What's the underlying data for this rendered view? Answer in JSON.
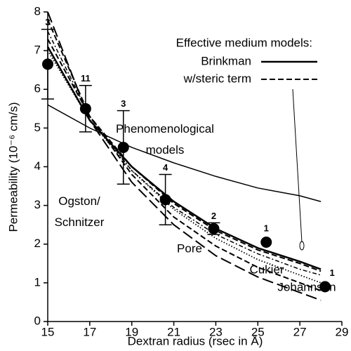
{
  "chart_data": {
    "type": "line",
    "xlabel": "Dextran radius (rsec in Å)",
    "ylabel": "Permeability (10⁻⁶ cm/s)",
    "xlim": [
      15,
      29
    ],
    "xticks": [
      15,
      17,
      19,
      21,
      23,
      25,
      27,
      29
    ],
    "ylim": [
      0,
      8
    ],
    "yticks": [
      0,
      1,
      2,
      3,
      4,
      5,
      6,
      7,
      8
    ],
    "legend_title": "Effective medium models:",
    "x": [
      15,
      17,
      19,
      21,
      23,
      25,
      27,
      28
    ],
    "series": [
      {
        "name": "Brinkman",
        "color": "#000",
        "style": "solid-thick",
        "legend": true,
        "values": [
          7.1,
          5.2,
          4.0,
          3.1,
          2.4,
          1.9,
          1.55,
          1.35
        ]
      },
      {
        "name": "w/steric term",
        "color": "#000",
        "style": "dashed",
        "legend": true,
        "values": [
          7.3,
          5.3,
          4.0,
          3.05,
          2.35,
          1.85,
          1.5,
          1.3
        ]
      },
      {
        "name": "Phenomenological models",
        "color": "#000",
        "style": "solid",
        "values": [
          5.6,
          5.0,
          4.5,
          4.1,
          3.75,
          3.45,
          3.25,
          3.1
        ]
      },
      {
        "name": "Ogston/ Schnitzer",
        "color": "#000",
        "style": "dashdot",
        "values": [
          7.5,
          5.3,
          3.9,
          2.95,
          2.25,
          1.75,
          1.35,
          1.2
        ]
      },
      {
        "name": "Pore",
        "color": "#000",
        "style": "dotted",
        "values": [
          7.0,
          5.2,
          3.9,
          2.9,
          2.15,
          1.6,
          1.2,
          1.0
        ]
      },
      {
        "name": "Cukier",
        "color": "#000",
        "style": "dashed",
        "values": [
          7.8,
          5.3,
          3.8,
          2.7,
          1.95,
          1.4,
          1.0,
          0.8
        ]
      },
      {
        "name": "Johannson",
        "color": "#000",
        "style": "longdash",
        "values": [
          8.0,
          5.2,
          3.6,
          2.5,
          1.7,
          1.15,
          0.75,
          0.55
        ]
      }
    ],
    "points": {
      "x": [
        15,
        16.8,
        18.6,
        20.6,
        22.9,
        25.4,
        28.2
      ],
      "values": [
        6.65,
        5.5,
        4.5,
        3.15,
        2.4,
        2.05,
        0.9
      ],
      "errors": [
        0.9,
        0.6,
        0.95,
        0.65,
        0.15,
        null,
        null
      ],
      "n_labels": [
        "3",
        "11",
        "3",
        "4",
        "2",
        "1",
        "1"
      ]
    }
  }
}
